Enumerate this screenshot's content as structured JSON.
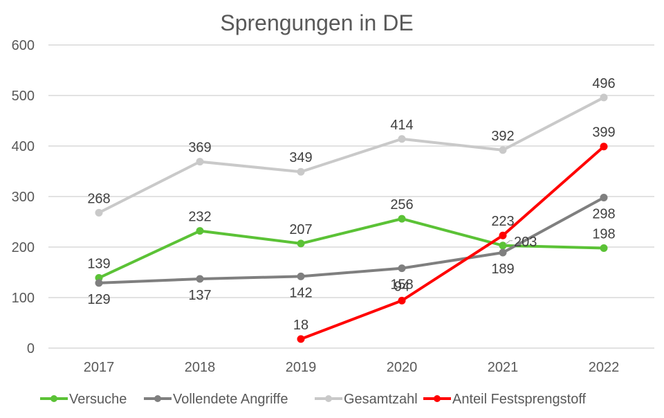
{
  "chart_data": {
    "type": "line",
    "title": "Sprengungen in DE",
    "xlabel": "",
    "ylabel": "",
    "categories": [
      "2017",
      "2018",
      "2019",
      "2020",
      "2021",
      "2022"
    ],
    "ylim": [
      0,
      600
    ],
    "yticks": [
      "0",
      "100",
      "200",
      "300",
      "400",
      "500",
      "600"
    ],
    "grid": true,
    "legend_position": "bottom",
    "series": [
      {
        "name": "Versuche",
        "color": "#5BC236",
        "values": [
          139,
          232,
          207,
          256,
          203,
          198
        ],
        "label_pos": [
          "above",
          "above",
          "above",
          "above",
          "right",
          "above"
        ]
      },
      {
        "name": "Vollendete Angriffe",
        "color": "#7F7F7F",
        "values": [
          129,
          137,
          142,
          158,
          189,
          298
        ],
        "label_pos": [
          "below",
          "below",
          "below",
          "below",
          "below",
          "below"
        ]
      },
      {
        "name": "Gesamtzahl",
        "color": "#C9C9C9",
        "values": [
          268,
          369,
          349,
          414,
          392,
          496
        ],
        "label_pos": [
          "above",
          "above",
          "above",
          "above",
          "above",
          "above"
        ]
      },
      {
        "name": "Anteil Festsprengstoff",
        "color": "#FF0000",
        "values": [
          null,
          null,
          18,
          94,
          223,
          399
        ],
        "label_pos": [
          null,
          null,
          "above",
          "above",
          "above",
          "above"
        ]
      }
    ]
  }
}
